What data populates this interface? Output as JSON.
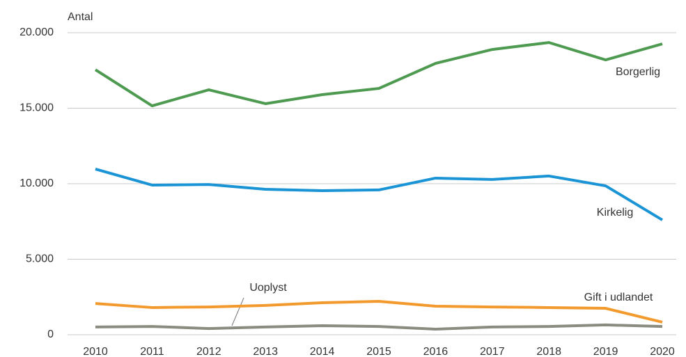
{
  "chart_data": {
    "type": "line",
    "y_label": "Antal",
    "categories": [
      "2010",
      "2011",
      "2012",
      "2013",
      "2014",
      "2015",
      "2016",
      "2017",
      "2018",
      "2019",
      "2020"
    ],
    "series": [
      {
        "name": "Borgerlig",
        "color": "#4e9a50",
        "values": [
          17550,
          15160,
          16220,
          15300,
          15900,
          16310,
          17970,
          18890,
          19350,
          18200,
          19260
        ]
      },
      {
        "name": "Kirkelig",
        "color": "#1a94d4",
        "values": [
          10970,
          9910,
          9950,
          9630,
          9540,
          9590,
          10370,
          10280,
          10510,
          9860,
          7600
        ]
      },
      {
        "name": "Gift i udlandet",
        "color": "#f39a2e",
        "values": [
          2070,
          1800,
          1840,
          1940,
          2120,
          2210,
          1890,
          1840,
          1800,
          1750,
          830
        ]
      },
      {
        "name": "Uoplyst",
        "color": "#8a8c80",
        "values": [
          510,
          550,
          410,
          510,
          600,
          550,
          370,
          510,
          550,
          650,
          550
        ]
      }
    ],
    "ylim": [
      0,
      20000
    ],
    "yticks": [
      0,
      {
        "value": 5000,
        "label": "5.000"
      },
      {
        "value": 10000,
        "label": "10.000"
      },
      {
        "value": 15000,
        "label": "15.000"
      },
      {
        "value": 20000,
        "label": "20.000"
      }
    ],
    "grid": true
  }
}
